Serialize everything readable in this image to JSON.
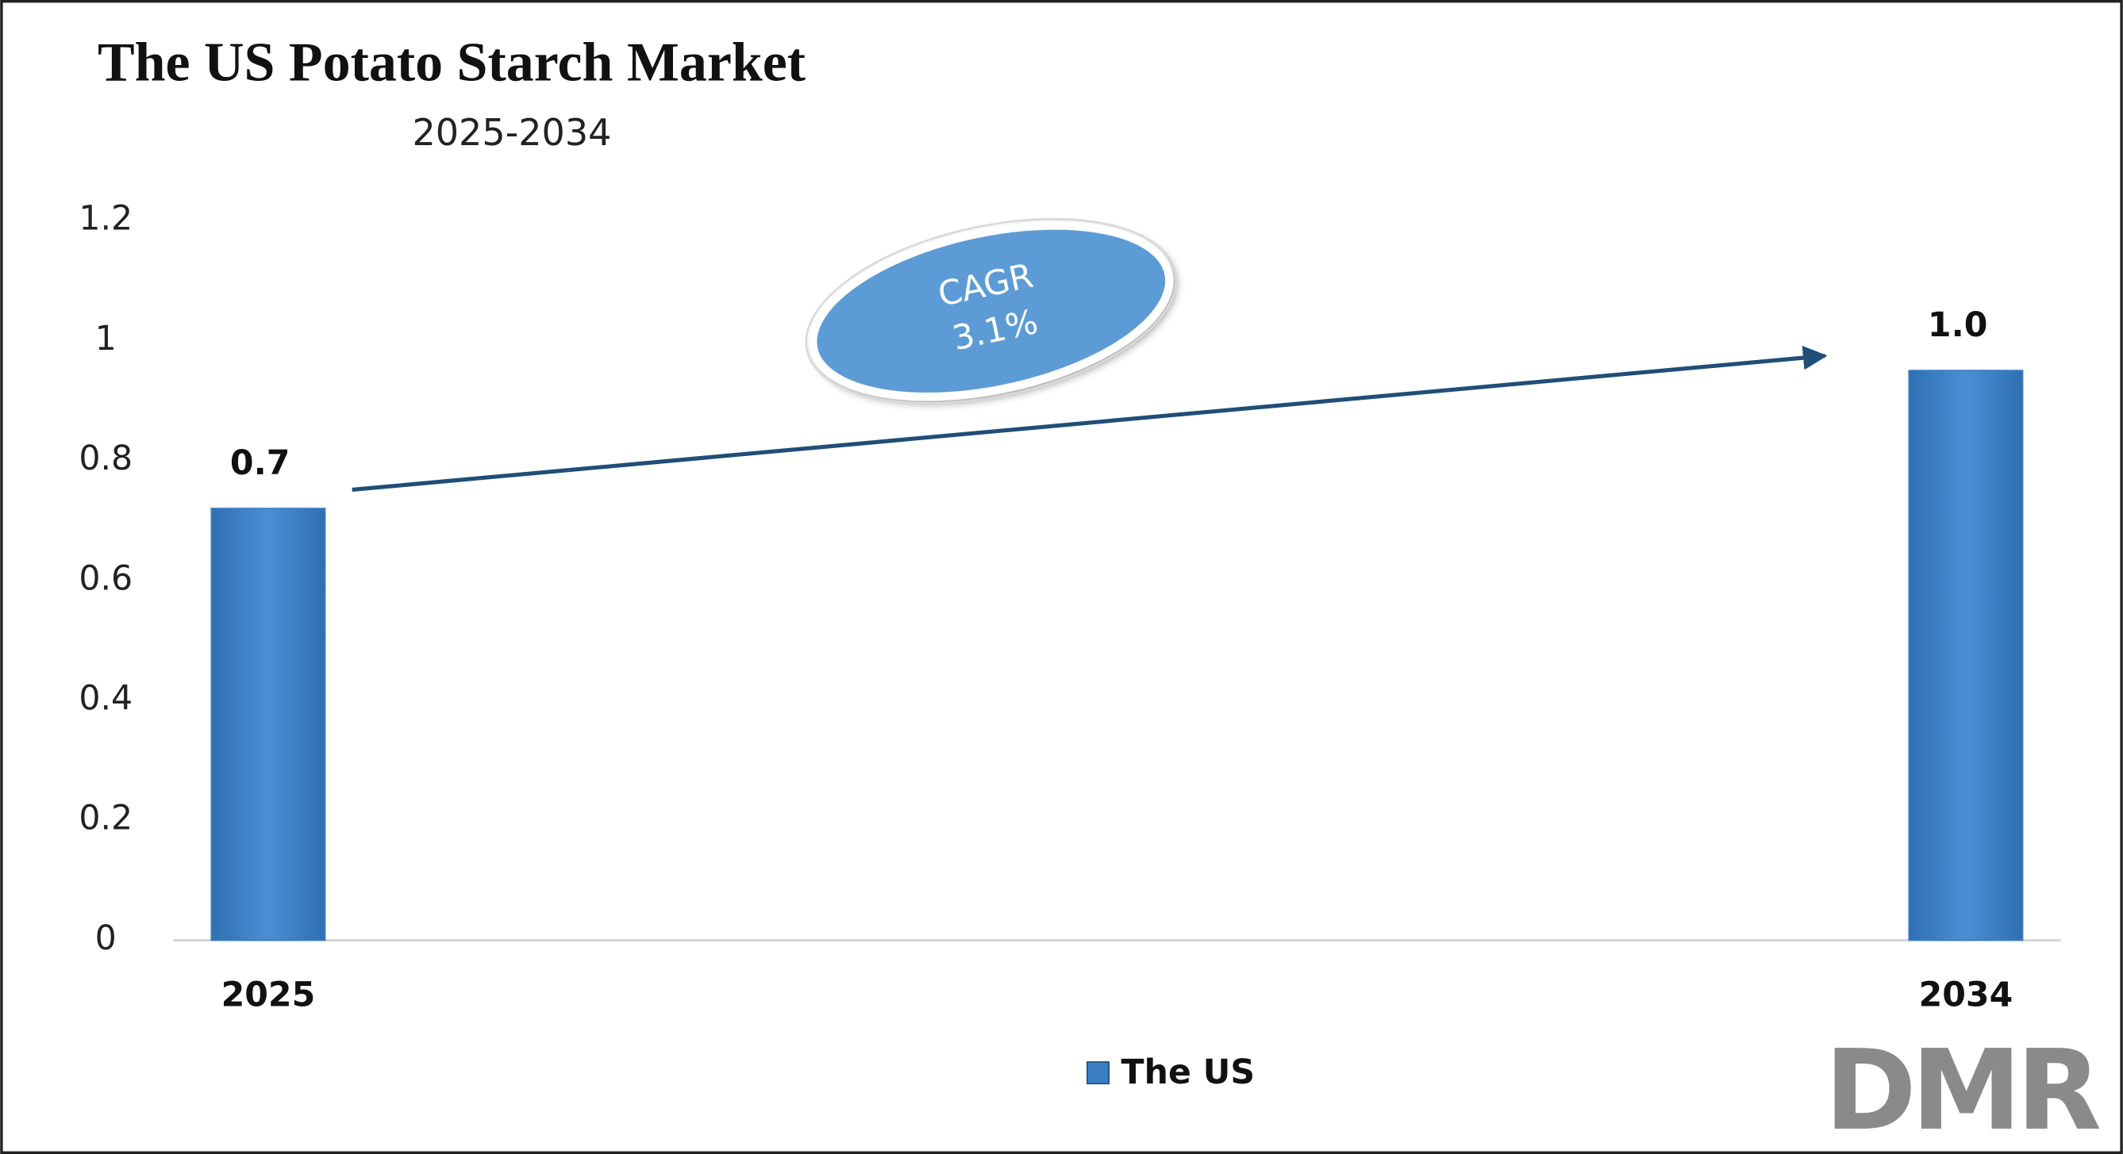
{
  "chart_data": {
    "type": "bar",
    "title": "The US Potato Starch Market",
    "subtitle": "2025-2034",
    "categories": [
      "2025",
      "2034"
    ],
    "series": [
      {
        "name": "The US",
        "color": "#3a7ec4",
        "values": [
          0.72,
          0.95
        ],
        "value_labels": [
          "0.7",
          "1.0"
        ]
      }
    ],
    "ylim": [
      0,
      1.2
    ],
    "yticks": [
      0,
      0.2,
      0.4,
      0.6,
      0.8,
      1,
      1.2
    ],
    "grid": false,
    "annotation": {
      "title": "CAGR",
      "value": "3.1%"
    },
    "logo": "DMR"
  }
}
